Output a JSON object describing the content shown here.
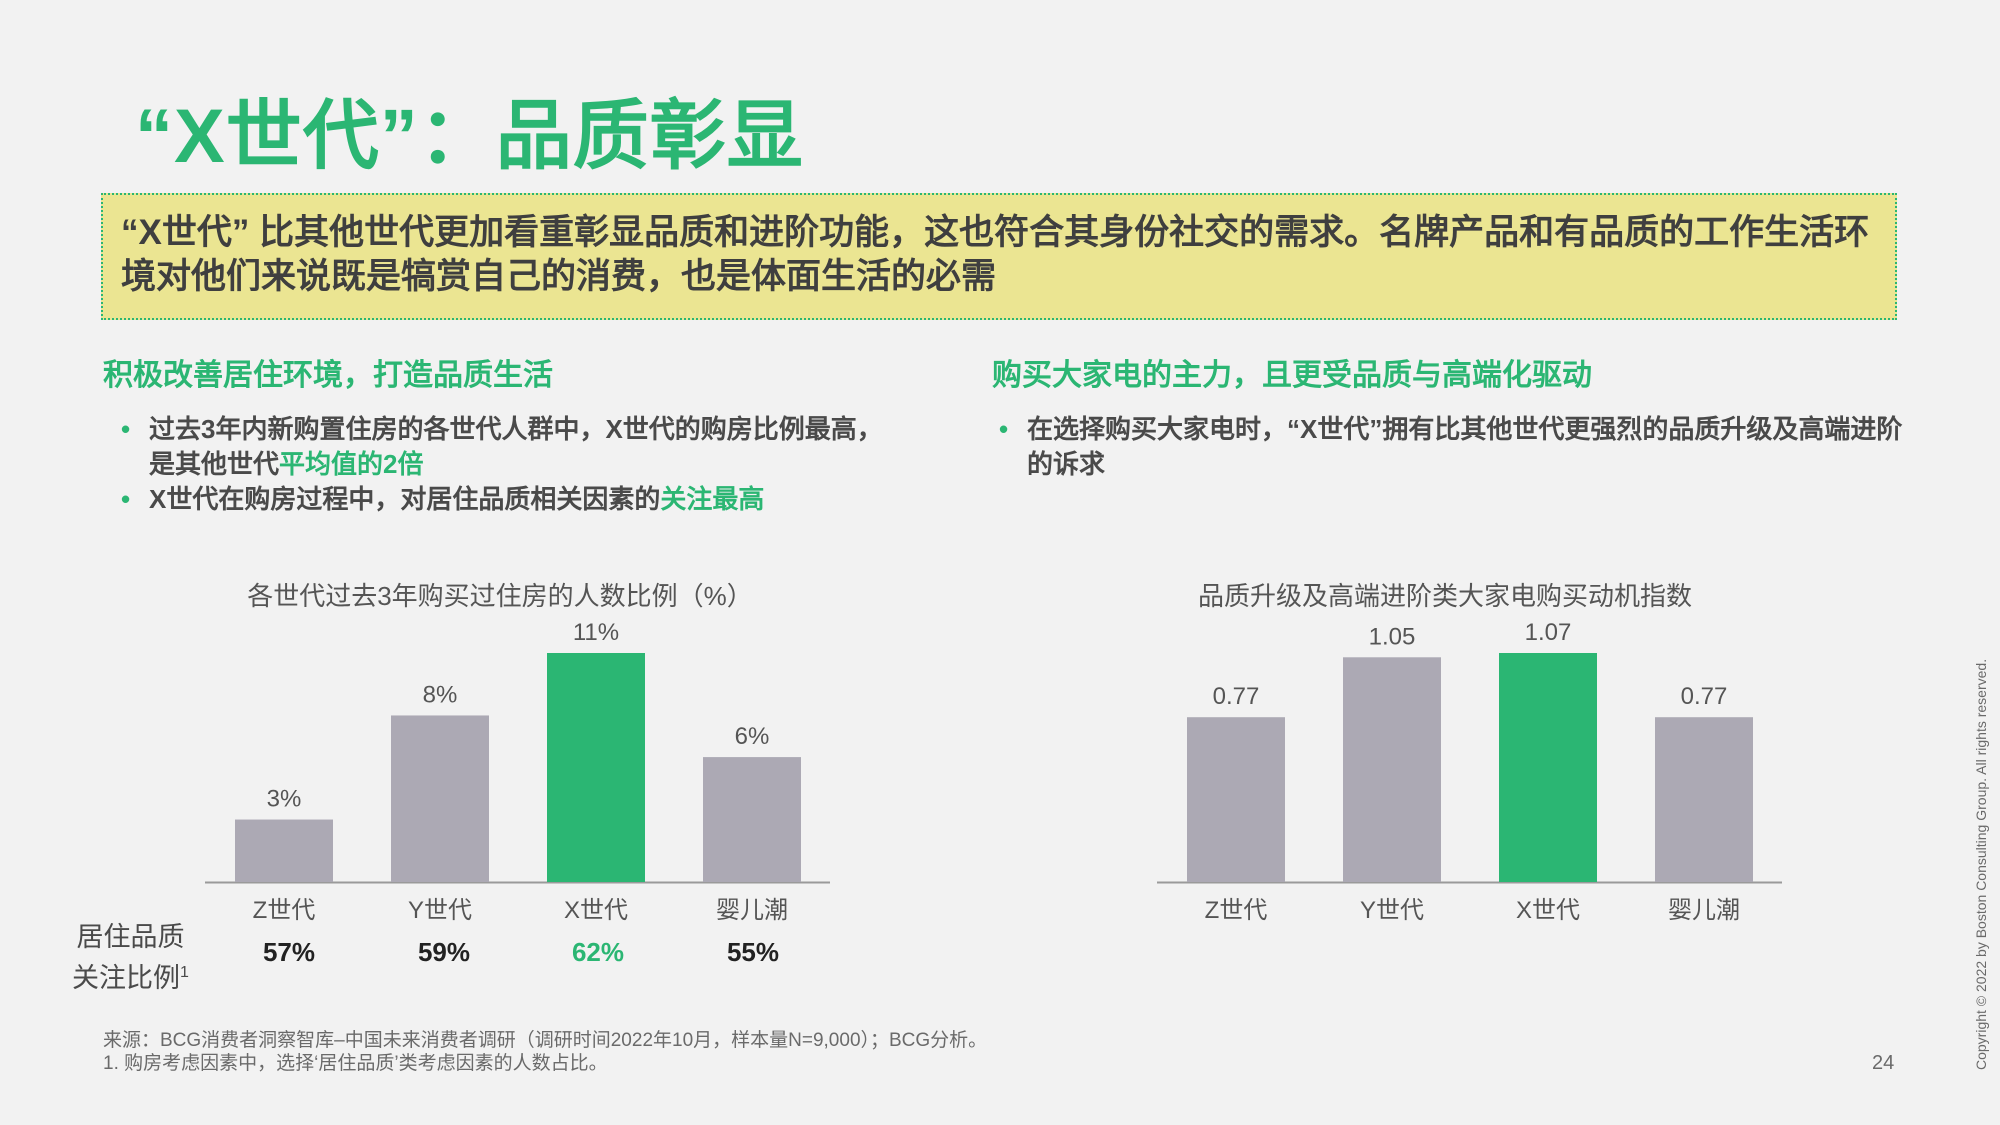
{
  "title": "“X世代”：品质彰显",
  "callout": "“X世代” 比其他世代更加看重彰显品质和进阶功能，这也符合其身份社交的需求。名牌产品和有品质的工作生活环境对他们来说既是犒赏自己的消费，也是体面生活的必需",
  "left": {
    "section_title": "积极改善居住环境，打造品质生活",
    "bullet1_part1": "过去3年内新购置住房的各世代人群中，X世代的购房比例最高，是其他世代",
    "bullet1_highlight": "平均值的2倍",
    "bullet2_part1": "X世代在购房过程中，对居住品质相关因素的",
    "bullet2_highlight": "关注最高",
    "row_label_line1": "居住品质",
    "row_label_line2": "关注比例",
    "row_label_sup": "1",
    "row_values": [
      "57%",
      "59%",
      "62%",
      "55%"
    ]
  },
  "right": {
    "section_title": "购买大家电的主力，且更受品质与高端化驱动",
    "bullet1": "在选择购买大家电时，“X世代”拥有比其他世代更强烈的品质升级及高端进阶的诉求"
  },
  "colors": {
    "accent": "#2bb673",
    "bar_gray": "#aca9b4",
    "callout_bg": "#ebe592"
  },
  "chart_data": [
    {
      "type": "bar",
      "title": "各世代过去3年购买过住房的人数比例（%）",
      "categories": [
        "Z世代",
        "Y世代",
        "X世代",
        "婴儿潮"
      ],
      "values": [
        3,
        8,
        11,
        6
      ],
      "labels": [
        "3%",
        "8%",
        "11%",
        "6%"
      ],
      "highlight": "X世代",
      "ylim": [
        0,
        11
      ]
    },
    {
      "type": "bar",
      "title": "品质升级及高端进阶类大家电购买动机指数",
      "categories": [
        "Z世代",
        "Y世代",
        "X世代",
        "婴儿潮"
      ],
      "values": [
        0.77,
        1.05,
        1.07,
        0.77
      ],
      "labels": [
        "0.77",
        "1.05",
        "1.07",
        "0.77"
      ],
      "highlight": "X世代",
      "ylim": [
        0,
        1.07
      ]
    }
  ],
  "footnote_line1": "来源：BCG消费者洞察智库–中国未来消费者调研（调研时间2022年10月，样本量N=9,000）；BCG分析。",
  "footnote_line2": "1. 购房考虑因素中，选择‘居住品质’类考虑因素的人数占比。",
  "page_number": "24",
  "copyright": "Copyright © 2022 by Boston Consulting Group. All rights reserved."
}
